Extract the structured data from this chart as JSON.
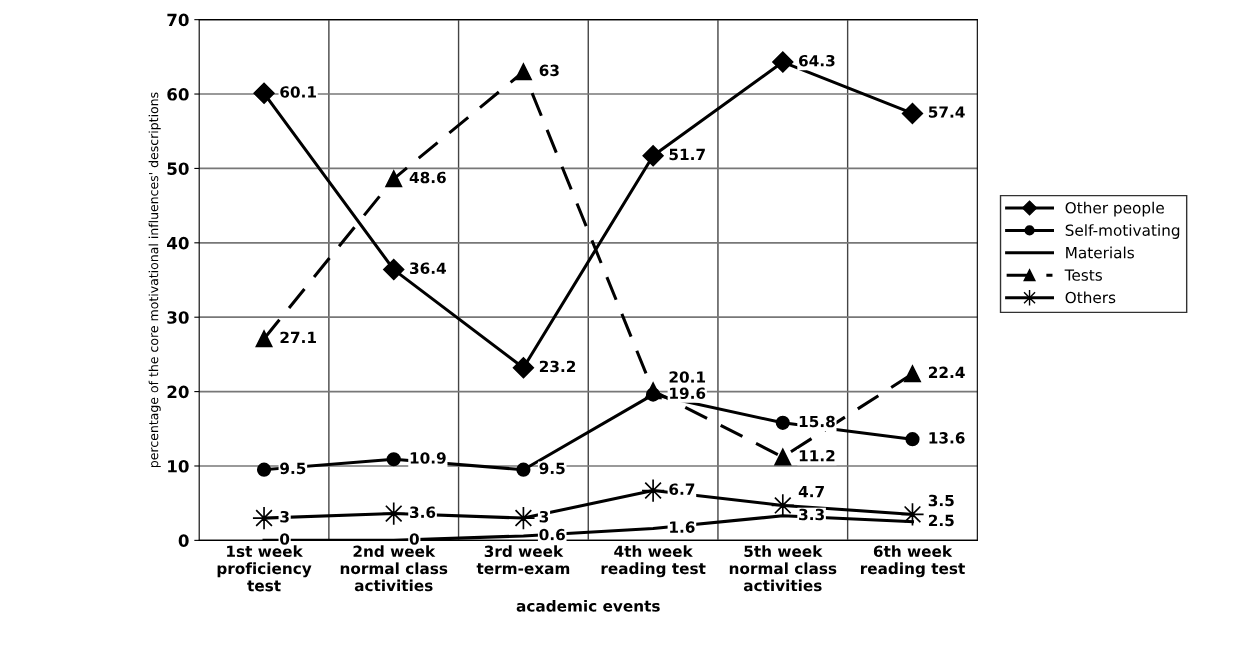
{
  "chart_data": {
    "type": "line",
    "xlabel": "academic events",
    "ylabel": "percentage of the core motivational influences' descriptions",
    "categories": [
      "1st week\nproficiency\ntest",
      "2nd week\nnormal class\nactivities",
      "3rd week\nterm-exam",
      "4th week\nreading test",
      "5th week\nnormal class\nactivities",
      "6th week\nreading test"
    ],
    "series": [
      {
        "name": "Other people",
        "color": "#000000",
        "marker": "diamond",
        "line_style": "solid",
        "values": [
          60.1,
          36.4,
          23.2,
          51.7,
          64.3,
          57.4
        ]
      },
      {
        "name": "Self-motivating",
        "color": "#000000",
        "marker": "circle",
        "line_style": "solid",
        "values": [
          9.5,
          10.9,
          9.5,
          19.6,
          15.8,
          13.6
        ]
      },
      {
        "name": "Materials",
        "color": "#000000",
        "marker": "none",
        "line_style": "solid",
        "values": [
          0,
          0,
          0.6,
          1.6,
          3.3,
          2.5
        ]
      },
      {
        "name": "Tests",
        "color": "#000000",
        "marker": "triangle",
        "line_style": "dashed",
        "values": [
          27.1,
          48.6,
          63,
          20.1,
          11.2,
          22.4
        ]
      },
      {
        "name": "Others",
        "color": "#000000",
        "marker": "star",
        "line_style": "solid",
        "values": [
          3,
          3.6,
          3,
          6.7,
          4.7,
          3.5
        ]
      }
    ],
    "ylim": [
      0,
      70
    ],
    "yticks": [
      0,
      10,
      20,
      30,
      40,
      50,
      60,
      70
    ],
    "grid": true,
    "legend": "right",
    "data_labels": true
  }
}
